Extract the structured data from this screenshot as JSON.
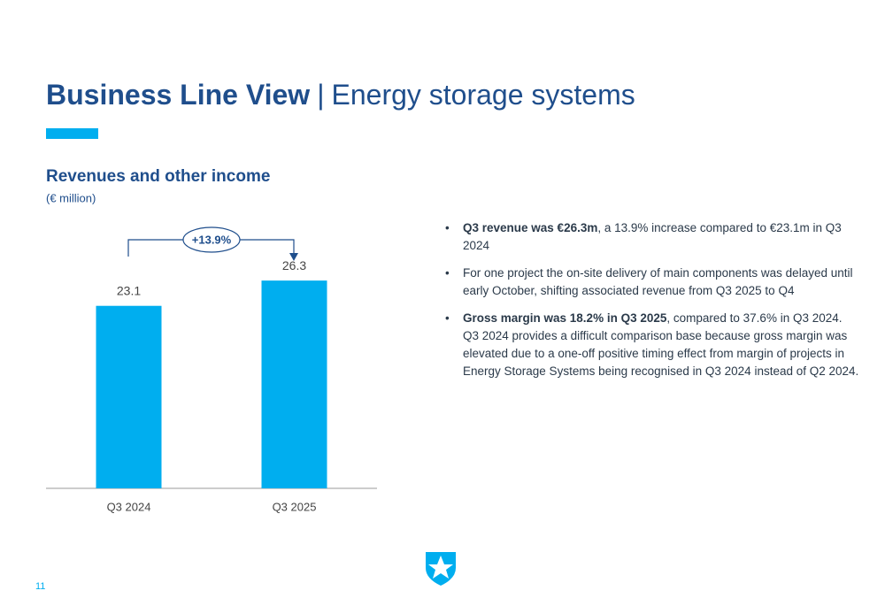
{
  "header": {
    "title_bold": "Business Line View",
    "separator": "|",
    "title_rest": "Energy storage systems"
  },
  "chart_data": {
    "type": "bar",
    "title": "Revenues and other income",
    "subtitle": "(€ million)",
    "categories": [
      "Q3 2024",
      "Q3 2025"
    ],
    "values": [
      23.1,
      26.3
    ],
    "color": "#00aeef",
    "annotation": "+13.9%"
  },
  "bullets": [
    {
      "bold": "Q3 revenue was €26.3m",
      "text": ", a 13.9% increase compared to €23.1m in Q3 2024"
    },
    {
      "text": "For one project the on-site delivery of main components was delayed until early October, shifting associated revenue from Q3 2025 to Q4"
    },
    {
      "bold": "Gross margin was 18.2% in Q3 2025",
      "text": ", compared to 37.6% in Q3 2024. Q3 2024 provides a difficult comparison base because gross margin was elevated due to a one-off positive timing effect from margin of projects in Energy Storage Systems being recognised in Q3 2024 instead of Q2 2024."
    }
  ],
  "footer": {
    "page": "11"
  }
}
